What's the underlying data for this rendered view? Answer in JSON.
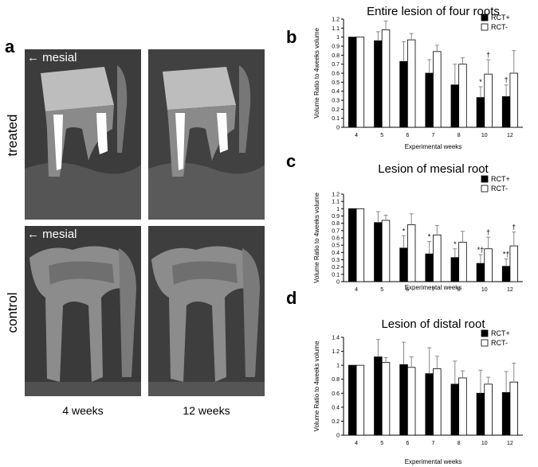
{
  "panel_a": {
    "letter": "a",
    "mesial_label": "mesial",
    "row_treated": "treated",
    "row_control": "control",
    "col_4w": "4 weeks",
    "col_12w": "12 weeks"
  },
  "chart_data": [
    {
      "type": "bar",
      "letter": "b",
      "title": "Entire lesion of four roots",
      "xlabel": "Experimental weeks",
      "ylabel": "Volume Ratio to 4weeks volume",
      "categories": [
        "4",
        "5",
        "6",
        "7",
        "8",
        "10",
        "12"
      ],
      "ylim": [
        0,
        1.2
      ],
      "yticks": [
        "0",
        "0.1",
        "0.2",
        "0.3",
        "0.4",
        "0.5",
        "0.6",
        "0.7",
        "0.8",
        "0.9",
        "1",
        "1.1",
        "1.2"
      ],
      "series": [
        {
          "name": "RCT+",
          "color": "#000000",
          "values": [
            1,
            0.96,
            0.73,
            0.6,
            0.47,
            0.33,
            0.34
          ],
          "errors": [
            0,
            0.1,
            0.22,
            0.15,
            0.23,
            0.12,
            0.13
          ]
        },
        {
          "name": "RCT-",
          "color": "#ffffff",
          "values": [
            1,
            1.08,
            0.97,
            0.84,
            0.7,
            0.59,
            0.6
          ],
          "errors": [
            0,
            0.1,
            0.07,
            0.07,
            0.07,
            0.16,
            0.25
          ]
        }
      ],
      "annotations": [
        {
          "category": "10",
          "series": "RCT+",
          "text": "*"
        },
        {
          "category": "10",
          "series": "RCT-",
          "text": "†"
        },
        {
          "category": "12",
          "series": "RCT+",
          "text": "†"
        }
      ],
      "legend": "top-right"
    },
    {
      "type": "bar",
      "letter": "c",
      "title": "Lesion of mesial root",
      "xlabel": "Experimental weeks",
      "ylabel": "Volume Ratio to 4weeks volume",
      "categories": [
        "4",
        "5",
        "6",
        "7",
        "8",
        "10",
        "12"
      ],
      "ylim": [
        0,
        1.2
      ],
      "yticks": [
        "0",
        "0.1",
        "0.2",
        "0.3",
        "0.4",
        "0.5",
        "0.6",
        "0.7",
        "0.8",
        "0.9",
        "1",
        "1.1",
        "1.2"
      ],
      "series": [
        {
          "name": "RCT+",
          "color": "#000000",
          "values": [
            1,
            0.81,
            0.46,
            0.38,
            0.33,
            0.25,
            0.21
          ],
          "errors": [
            0,
            0.15,
            0.17,
            0.17,
            0.12,
            0.12,
            0.1
          ]
        },
        {
          "name": "RCT-",
          "color": "#ffffff",
          "values": [
            1,
            0.84,
            0.78,
            0.64,
            0.54,
            0.45,
            0.49
          ],
          "errors": [
            0,
            0.07,
            0.15,
            0.13,
            0.15,
            0.16,
            0.19
          ]
        }
      ],
      "annotations": [
        {
          "category": "6",
          "series": "RCT+",
          "text": "*"
        },
        {
          "category": "7",
          "series": "RCT+",
          "text": "*"
        },
        {
          "category": "8",
          "series": "RCT+",
          "text": "*"
        },
        {
          "category": "10",
          "series": "RCT+",
          "text": "*†"
        },
        {
          "category": "10",
          "series": "RCT-",
          "text": "†"
        },
        {
          "category": "12",
          "series": "RCT+",
          "text": "*†"
        },
        {
          "category": "12",
          "series": "RCT-",
          "text": "†"
        }
      ],
      "legend": "top-right"
    },
    {
      "type": "bar",
      "letter": "d",
      "title": "Lesion of distal root",
      "xlabel": "Experimental weeks",
      "ylabel": "Volume Ratio to 4weeks volume",
      "categories": [
        "4",
        "5",
        "6",
        "7",
        "8",
        "10",
        "12"
      ],
      "ylim": [
        0,
        1.4
      ],
      "yticks": [
        "0",
        "0.2",
        "0.4",
        "0.6",
        "0.8",
        "1",
        "1.2",
        "1.4"
      ],
      "series": [
        {
          "name": "RCT+",
          "color": "#000000",
          "values": [
            1,
            1.12,
            1.01,
            0.88,
            0.73,
            0.6,
            0.61
          ],
          "errors": [
            0,
            0.25,
            0.32,
            0.37,
            0.33,
            0.33,
            0.3
          ]
        },
        {
          "name": "RCT-",
          "color": "#ffffff",
          "values": [
            1,
            1.04,
            0.97,
            0.95,
            0.82,
            0.73,
            0.76
          ],
          "errors": [
            0,
            0.07,
            0.15,
            0.18,
            0.1,
            0.1,
            0.27
          ]
        }
      ],
      "annotations": [],
      "legend": "top-right"
    }
  ]
}
